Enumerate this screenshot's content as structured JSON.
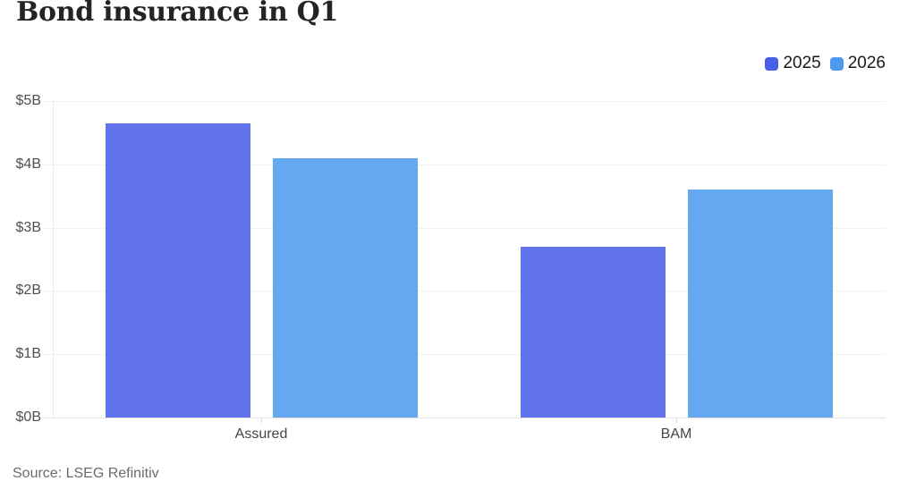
{
  "title": "Bond insurance in Q1",
  "source": "Source: LSEG Refinitiv",
  "colors": {
    "series_2025": "#4A5FE8",
    "series_2026": "#4D9BEF",
    "gridline": "#f1f1f1",
    "axis_text": "#4f4f4f",
    "title_text": "#242424",
    "source_text": "#6b6b6b"
  },
  "chart_data": {
    "type": "bar",
    "title": "Bond insurance in Q1",
    "categories": [
      "Assured",
      "BAM"
    ],
    "series": [
      {
        "name": "2025",
        "color": "#4A5FE8",
        "values": [
          4.65,
          2.7
        ]
      },
      {
        "name": "2026",
        "color": "#4D9BEF",
        "values": [
          4.1,
          3.6
        ]
      }
    ],
    "xlabel": "",
    "ylabel": "",
    "y_unit": "billions USD",
    "y_ticks": [
      "$0B",
      "$1B",
      "$2B",
      "$3B",
      "$4B",
      "$5B"
    ],
    "y_tick_values": [
      0,
      1,
      2,
      3,
      4,
      5
    ],
    "ylim": [
      0,
      5
    ],
    "grid": true,
    "legend_position": "top-right",
    "source": "Source: LSEG Refinitiv"
  }
}
